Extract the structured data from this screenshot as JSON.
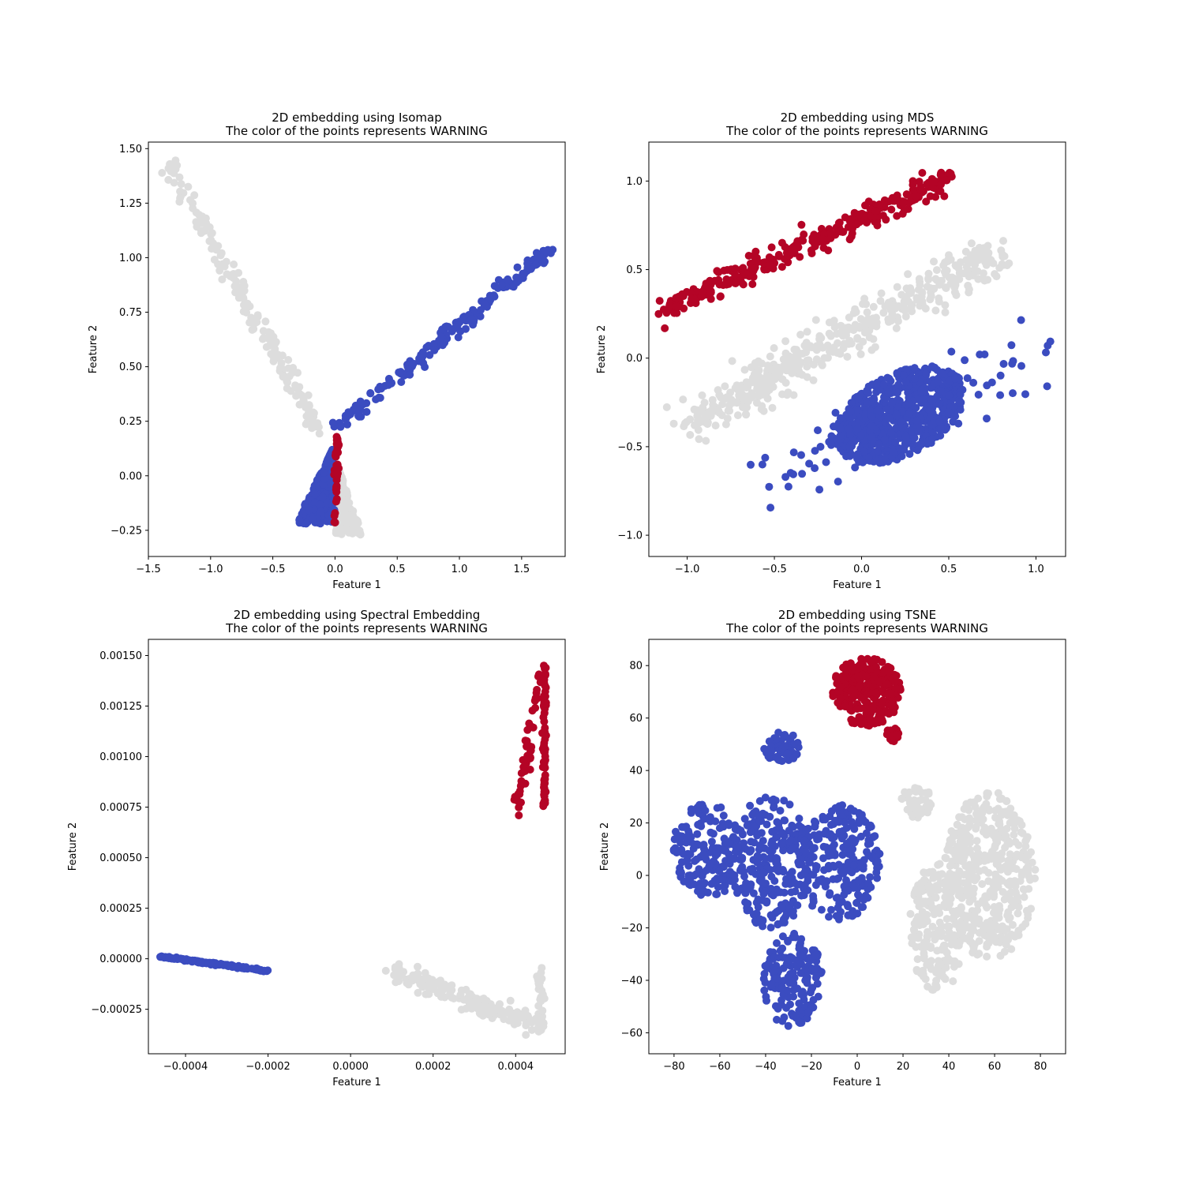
{
  "colors": {
    "low": "#3b4cc0",
    "mid": "#dddddd",
    "high": "#b40426",
    "axis": "#000000"
  },
  "chart_data": [
    {
      "type": "scatter",
      "title": "2D embedding using Isomap\nThe color of the points represents WARNING",
      "xlabel": "Feature 1",
      "ylabel": "Feature 2",
      "xlim": [
        -1.5,
        1.85
      ],
      "ylim": [
        -0.37,
        1.53
      ],
      "xticks": [
        -1.5,
        -1.0,
        -0.5,
        0.0,
        0.5,
        1.0,
        1.5
      ],
      "xtick_labels": [
        "−1.5",
        "−1.0",
        "−0.5",
        "0.0",
        "0.5",
        "1.0",
        "1.5"
      ],
      "yticks": [
        -0.25,
        0.0,
        0.25,
        0.5,
        0.75,
        1.0,
        1.25,
        1.5
      ],
      "ytick_labels": [
        "−0.25",
        "0.00",
        "0.25",
        "0.50",
        "0.75",
        "1.00",
        "1.25",
        "1.50"
      ],
      "color_scale": "coolwarm (WARNING value)",
      "series": [
        {
          "color_key": "mid",
          "clusters": [
            {
              "shape": "line",
              "from": [
                -1.35,
                1.44
              ],
              "to": [
                -0.12,
                0.2
              ],
              "n": 170,
              "spread": [
                0.035,
                0.02
              ]
            },
            {
              "shape": "tri",
              "apex": [
                0.02,
                0.05
              ],
              "base_y": -0.27,
              "x_range": [
                0.0,
                0.22
              ],
              "n": 260
            }
          ]
        },
        {
          "color_key": "low",
          "clusters": [
            {
              "shape": "line",
              "from": [
                0.02,
                0.22
              ],
              "to": [
                1.72,
                1.04
              ],
              "n": 190,
              "spread": [
                0.025,
                0.018
              ]
            },
            {
              "shape": "tri",
              "apex": [
                -0.02,
                0.12
              ],
              "base_y": -0.22,
              "x_range": [
                -0.32,
                0.0
              ],
              "n": 380
            }
          ]
        },
        {
          "color_key": "high",
          "clusters": [
            {
              "shape": "line",
              "from": [
                0.02,
                0.19
              ],
              "to": [
                0.0,
                -0.22
              ],
              "n": 45,
              "spread": [
                0.008,
                0.01
              ]
            }
          ]
        }
      ]
    },
    {
      "type": "scatter",
      "title": "2D embedding using MDS\nThe color of the points represents WARNING",
      "xlabel": "Feature 1",
      "ylabel": "Feature 2",
      "xlim": [
        -1.22,
        1.17
      ],
      "ylim": [
        -1.12,
        1.22
      ],
      "xticks": [
        -1.0,
        -0.5,
        0.0,
        0.5,
        1.0
      ],
      "xtick_labels": [
        "−1.0",
        "−0.5",
        "0.0",
        "0.5",
        "1.0"
      ],
      "yticks": [
        -1.0,
        -0.5,
        0.0,
        0.5,
        1.0
      ],
      "ytick_labels": [
        "−1.0",
        "−0.5",
        "0.0",
        "0.5",
        "1.0"
      ],
      "color_scale": "coolwarm (WARNING value)",
      "series": [
        {
          "color_key": "high",
          "clusters": [
            {
              "shape": "line",
              "from": [
                -1.12,
                0.27
              ],
              "to": [
                0.5,
                1.02
              ],
              "n": 330,
              "spread": [
                0.04,
                0.03
              ]
            }
          ]
        },
        {
          "color_key": "mid",
          "clusters": [
            {
              "shape": "line",
              "from": [
                -1.0,
                -0.38
              ],
              "to": [
                0.8,
                0.62
              ],
              "n": 480,
              "spread": [
                0.05,
                0.06
              ]
            }
          ]
        },
        {
          "color_key": "low",
          "clusters": [
            {
              "shape": "ellipse",
              "center": [
                0.22,
                -0.32
              ],
              "radius": [
                0.4,
                0.23
              ],
              "angle_deg": 28,
              "n": 650
            },
            {
              "shape": "line",
              "from": [
                -0.62,
                -0.72
              ],
              "to": [
                1.05,
                0.04
              ],
              "n": 90,
              "spread": [
                0.08,
                0.1
              ]
            }
          ]
        }
      ]
    },
    {
      "type": "scatter",
      "title": "2D embedding using Spectral Embedding\nThe color of the points represents WARNING",
      "xlabel": "Feature 1",
      "ylabel": "Feature 2",
      "xlim": [
        -0.00049,
        0.00052
      ],
      "ylim": [
        -0.00047,
        0.00158
      ],
      "xticks": [
        -0.0004,
        -0.0002,
        0.0,
        0.0002,
        0.0004
      ],
      "xtick_labels": [
        "−0.0004",
        "−0.0002",
        "0.0000",
        "0.0002",
        "0.0004"
      ],
      "yticks": [
        -0.00025,
        0.0,
        0.00025,
        0.0005,
        0.00075,
        0.001,
        0.00125,
        0.0015
      ],
      "ytick_labels": [
        "−0.00025",
        "0.00000",
        "0.00025",
        "0.00050",
        "0.00075",
        "0.00100",
        "0.00125",
        "0.00150"
      ],
      "color_scale": "coolwarm (WARNING value)",
      "series": [
        {
          "color_key": "low",
          "clusters": [
            {
              "shape": "line",
              "from": [
                -0.00046,
                1e-05
              ],
              "to": [
                -0.0002,
                -6e-05
              ],
              "n": 120,
              "spread": [
                2e-06,
                3e-06
              ]
            }
          ]
        },
        {
          "color_key": "mid",
          "clusters": [
            {
              "shape": "line",
              "from": [
                0.0001,
                -5e-05
              ],
              "to": [
                0.00046,
                -0.00034
              ],
              "n": 170,
              "spread": [
                1.5e-05,
                2.2e-05
              ]
            },
            {
              "shape": "line",
              "from": [
                0.00046,
                -5e-05
              ],
              "to": [
                0.00046,
                -0.00038
              ],
              "n": 40,
              "spread": [
                4e-06,
                2e-05
              ]
            }
          ]
        },
        {
          "color_key": "high",
          "clusters": [
            {
              "shape": "line",
              "from": [
                0.00047,
                0.00075
              ],
              "to": [
                0.00047,
                0.00149
              ],
              "n": 70,
              "spread": [
                2e-06,
                1e-05
              ]
            },
            {
              "shape": "line",
              "from": [
                0.0004,
                0.0007
              ],
              "to": [
                0.00046,
                0.00142
              ],
              "n": 50,
              "spread": [
                6e-06,
                2e-05
              ]
            }
          ]
        }
      ]
    },
    {
      "type": "scatter",
      "title": "2D embedding using TSNE\nThe color of the points represents WARNING",
      "xlabel": "Feature 1",
      "ylabel": "Feature 2",
      "xlim": [
        -91,
        91
      ],
      "ylim": [
        -68,
        90
      ],
      "xticks": [
        -80,
        -60,
        -40,
        -20,
        0,
        20,
        40,
        60,
        80
      ],
      "xtick_labels": [
        "−80",
        "−60",
        "−40",
        "−20",
        "0",
        "20",
        "40",
        "60",
        "80"
      ],
      "yticks": [
        -60,
        -40,
        -20,
        0,
        20,
        40,
        60,
        80
      ],
      "ytick_labels": [
        "−60",
        "−40",
        "−20",
        "0",
        "20",
        "40",
        "60",
        "80"
      ],
      "color_scale": "coolwarm (WARNING value)",
      "series": [
        {
          "color_key": "high",
          "clusters": [
            {
              "shape": "ellipse",
              "center": [
                4,
                70
              ],
              "radius": [
                15,
                13
              ],
              "angle_deg": 0,
              "n": 260
            },
            {
              "shape": "ellipse",
              "center": [
                16,
                54
              ],
              "radius": [
                3,
                3
              ],
              "angle_deg": 0,
              "n": 18
            }
          ]
        },
        {
          "color_key": "low",
          "clusters": [
            {
              "shape": "ellipse",
              "center": [
                -33,
                49
              ],
              "radius": [
                8,
                6
              ],
              "angle_deg": 0,
              "n": 60
            },
            {
              "shape": "ellipse",
              "center": [
                -65,
                10
              ],
              "radius": [
                16,
                18
              ],
              "angle_deg": 0,
              "n": 170
            },
            {
              "shape": "ellipse",
              "center": [
                -38,
                5
              ],
              "radius": [
                18,
                25
              ],
              "angle_deg": 0,
              "n": 260
            },
            {
              "shape": "ellipse",
              "center": [
                -8,
                5
              ],
              "radius": [
                18,
                22
              ],
              "angle_deg": 0,
              "n": 230
            },
            {
              "shape": "ellipse",
              "center": [
                -28,
                -40
              ],
              "radius": [
                13,
                18
              ],
              "angle_deg": 0,
              "n": 170
            }
          ]
        },
        {
          "color_key": "mid",
          "clusters": [
            {
              "shape": "ellipse",
              "center": [
                26,
                28
              ],
              "radius": [
                7,
                6
              ],
              "angle_deg": 0,
              "n": 40
            },
            {
              "shape": "ellipse",
              "center": [
                58,
                0
              ],
              "radius": [
                20,
                32
              ],
              "angle_deg": 0,
              "n": 420
            },
            {
              "shape": "ellipse",
              "center": [
                35,
                -20
              ],
              "radius": [
                12,
                25
              ],
              "angle_deg": 0,
              "n": 200
            }
          ]
        }
      ]
    }
  ]
}
